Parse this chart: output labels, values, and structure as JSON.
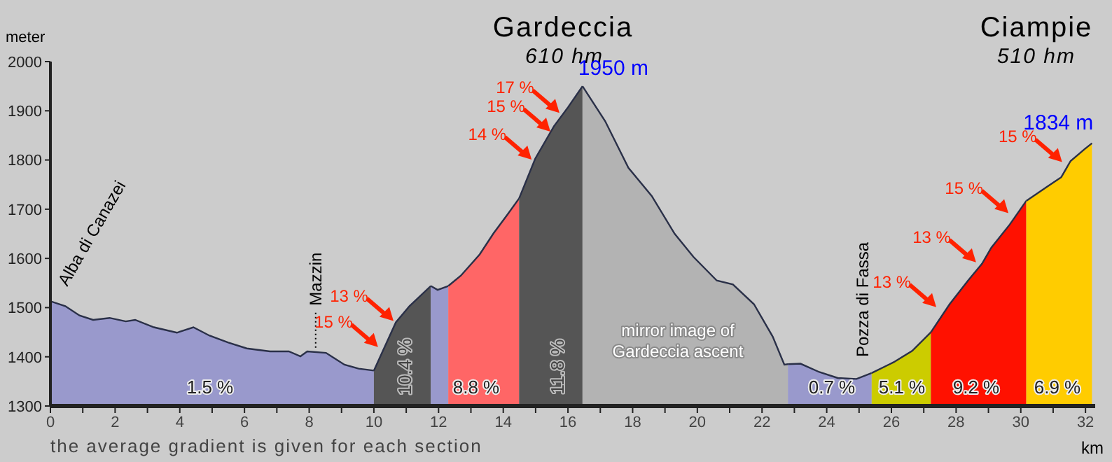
{
  "chart_data": {
    "type": "area",
    "ylabel": "meter",
    "xlabel": "km",
    "xlim": [
      0,
      32.3
    ],
    "ylim": [
      1300,
      2000
    ],
    "xticks": [
      0,
      {
        "value": 1,
        "label": null
      },
      2,
      {
        "value": 3,
        "label": null
      },
      4,
      {
        "value": 5,
        "label": null
      },
      6,
      {
        "value": 7,
        "label": null
      },
      8,
      {
        "value": 9,
        "label": null
      },
      10,
      {
        "value": 11,
        "label": null
      },
      12,
      {
        "value": 13,
        "label": null
      },
      14,
      {
        "value": 15,
        "label": null
      },
      16,
      {
        "value": 17,
        "label": null
      },
      18,
      {
        "value": 19,
        "label": null
      },
      20,
      {
        "value": 21,
        "label": null
      },
      22,
      {
        "value": 23,
        "label": null
      },
      24,
      {
        "value": 25,
        "label": null
      },
      26,
      {
        "value": 27,
        "label": null
      },
      28,
      {
        "value": 29,
        "label": null
      },
      30,
      {
        "value": 31,
        "label": null
      },
      32
    ],
    "yticks": [
      1300,
      1400,
      1500,
      1600,
      1700,
      1800,
      1900,
      2000
    ],
    "series": [
      {
        "color": "#9999cc",
        "x": [
          0,
          0.46,
          0.9,
          1.32,
          1.83,
          2.33,
          2.62,
          3.2,
          3.91,
          4.42,
          4.92,
          5.5,
          6.07,
          6.79,
          7.37,
          7.73,
          7.94,
          8.52,
          9.09,
          9.53,
          10.0
        ],
        "values": [
          1513,
          1503,
          1484,
          1475,
          1479,
          1472,
          1475,
          1460,
          1449,
          1460,
          1443,
          1429,
          1417,
          1411,
          1411,
          1401,
          1411,
          1408,
          1384,
          1376,
          1372
        ]
      },
      {
        "color": "#555555",
        "x": [
          10.0,
          10.68,
          11.1,
          11.76
        ],
        "values": [
          1372,
          1470,
          1503,
          1544
        ]
      },
      {
        "color": "#9999cc",
        "x": [
          11.76,
          11.97,
          12.3
        ],
        "values": [
          1544,
          1536,
          1544
        ]
      },
      {
        "color": "#ff6666",
        "x": [
          12.3,
          12.69,
          13.27,
          13.7,
          14.13,
          14.49
        ],
        "values": [
          1544,
          1565,
          1608,
          1651,
          1689,
          1722
        ]
      },
      {
        "color": "#555555",
        "x": [
          14.49,
          14.99,
          15.57,
          16.0,
          16.45
        ],
        "values": [
          1722,
          1803,
          1869,
          1907,
          1950
        ]
      },
      {
        "color": "#b3b3b3",
        "x": [
          16.45,
          17.15,
          17.87,
          18.59,
          19.3,
          19.88,
          20.6,
          21.1,
          21.75,
          22.33,
          22.69,
          22.8
        ],
        "values": [
          1950,
          1879,
          1784,
          1727,
          1650,
          1603,
          1555,
          1547,
          1507,
          1441,
          1384,
          1385
        ]
      },
      {
        "color": "#9999cc",
        "x": [
          22.8,
          23.19,
          23.77,
          24.34,
          24.92,
          25.39
        ],
        "values": [
          1385,
          1386,
          1369,
          1357,
          1355,
          1367
        ]
      },
      {
        "color": "#cccc00",
        "x": [
          25.39,
          26.07,
          26.64,
          27.22
        ],
        "values": [
          1367,
          1389,
          1412,
          1450
        ]
      },
      {
        "color": "#ff1100",
        "x": [
          27.22,
          27.8,
          28.37,
          28.8,
          29.09,
          29.66,
          30.17
        ],
        "values": [
          1450,
          1507,
          1555,
          1589,
          1622,
          1669,
          1717
        ]
      },
      {
        "color": "#ffcc00",
        "x": [
          30.17,
          30.82,
          31.25,
          31.54,
          31.97,
          32.2
        ],
        "values": [
          1717,
          1746,
          1765,
          1798,
          1822,
          1834
        ]
      }
    ],
    "annotations": [
      "Gardeccia",
      "610 hm",
      "Ciampie",
      "510 hm",
      {
        "text": "1950 m",
        "x": 16.45,
        "y": 1950
      },
      {
        "text": "1834 m",
        "x": 32.2,
        "y": 1834
      },
      "Alba di Canazei",
      {
        "text": "Mazzin",
        "x": 8.2,
        "y": 1410
      },
      "Pozza di Fassa",
      {
        "text": "15 %",
        "x": 10.17,
        "y": 1417
      },
      {
        "text": "13 %",
        "x": 10.65,
        "y": 1470
      },
      {
        "text": "14 %",
        "x": 14.92,
        "y": 1798
      },
      {
        "text": "15 %",
        "x": 15.5,
        "y": 1855
      },
      {
        "text": "17 %",
        "x": 15.78,
        "y": 1893
      },
      {
        "text": "13 %",
        "x": 27.43,
        "y": 1498
      },
      {
        "text": "13 %",
        "x": 28.66,
        "y": 1589
      },
      {
        "text": "15 %",
        "x": 29.66,
        "y": 1689
      },
      {
        "text": "15 %",
        "x": 31.32,
        "y": 1793
      },
      "1.5 %",
      "10.4 %",
      "8.8 %",
      "11.8 %",
      "mirror image of Gardeccia ascent",
      "0.7 %",
      "5.1 %",
      "9.2 %",
      "6.9 %",
      "the average gradient is given for each section"
    ]
  }
}
